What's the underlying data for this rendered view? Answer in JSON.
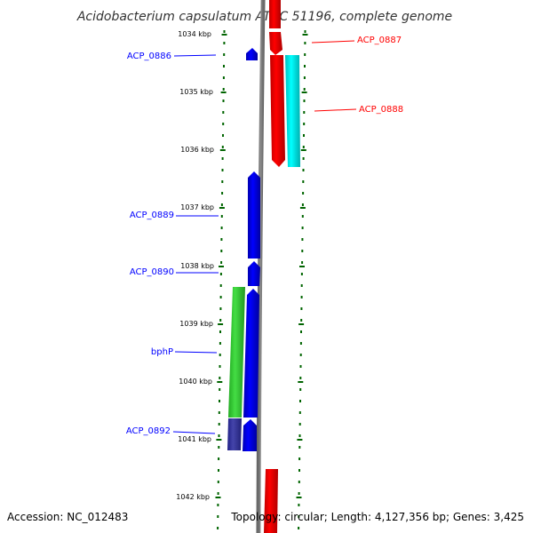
{
  "title": "Acidobacterium capsulatum ATCC 51196, complete genome",
  "accession": "Accession: NC_012483",
  "summary": "Topology: circular; Length: 4,127,356 bp; Genes: 3,425",
  "ticks": [
    "1034 kbp",
    "1035 kbp",
    "1036 kbp",
    "1037 kbp",
    "1038 kbp",
    "1039 kbp",
    "1040 kbp",
    "1041 kbp",
    "1042 kbp"
  ],
  "genes": [
    {
      "label": "ACP_0886",
      "strand": "reverse",
      "color": "#0000ff"
    },
    {
      "label": "ACP_0887",
      "strand": "forward",
      "color": "#ff0000"
    },
    {
      "label": "ACP_0888",
      "strand": "forward",
      "color": "#00ffff"
    },
    {
      "label": "ACP_0889",
      "strand": "reverse",
      "color": "#0000ff"
    },
    {
      "label": "ACP_0890",
      "strand": "reverse",
      "color": "#0000ff"
    },
    {
      "label": "bphP",
      "strand": "reverse",
      "color": "#0000ff"
    },
    {
      "label": "ACP_0892",
      "strand": "reverse",
      "color": "#0000ff"
    }
  ],
  "colors": {
    "forward_label": "#ff0000",
    "reverse_label": "#0000ff",
    "backbone": "#808080",
    "dots": "#006400",
    "green_feature": "#33cc33",
    "purple_feature": "#3333aa"
  }
}
